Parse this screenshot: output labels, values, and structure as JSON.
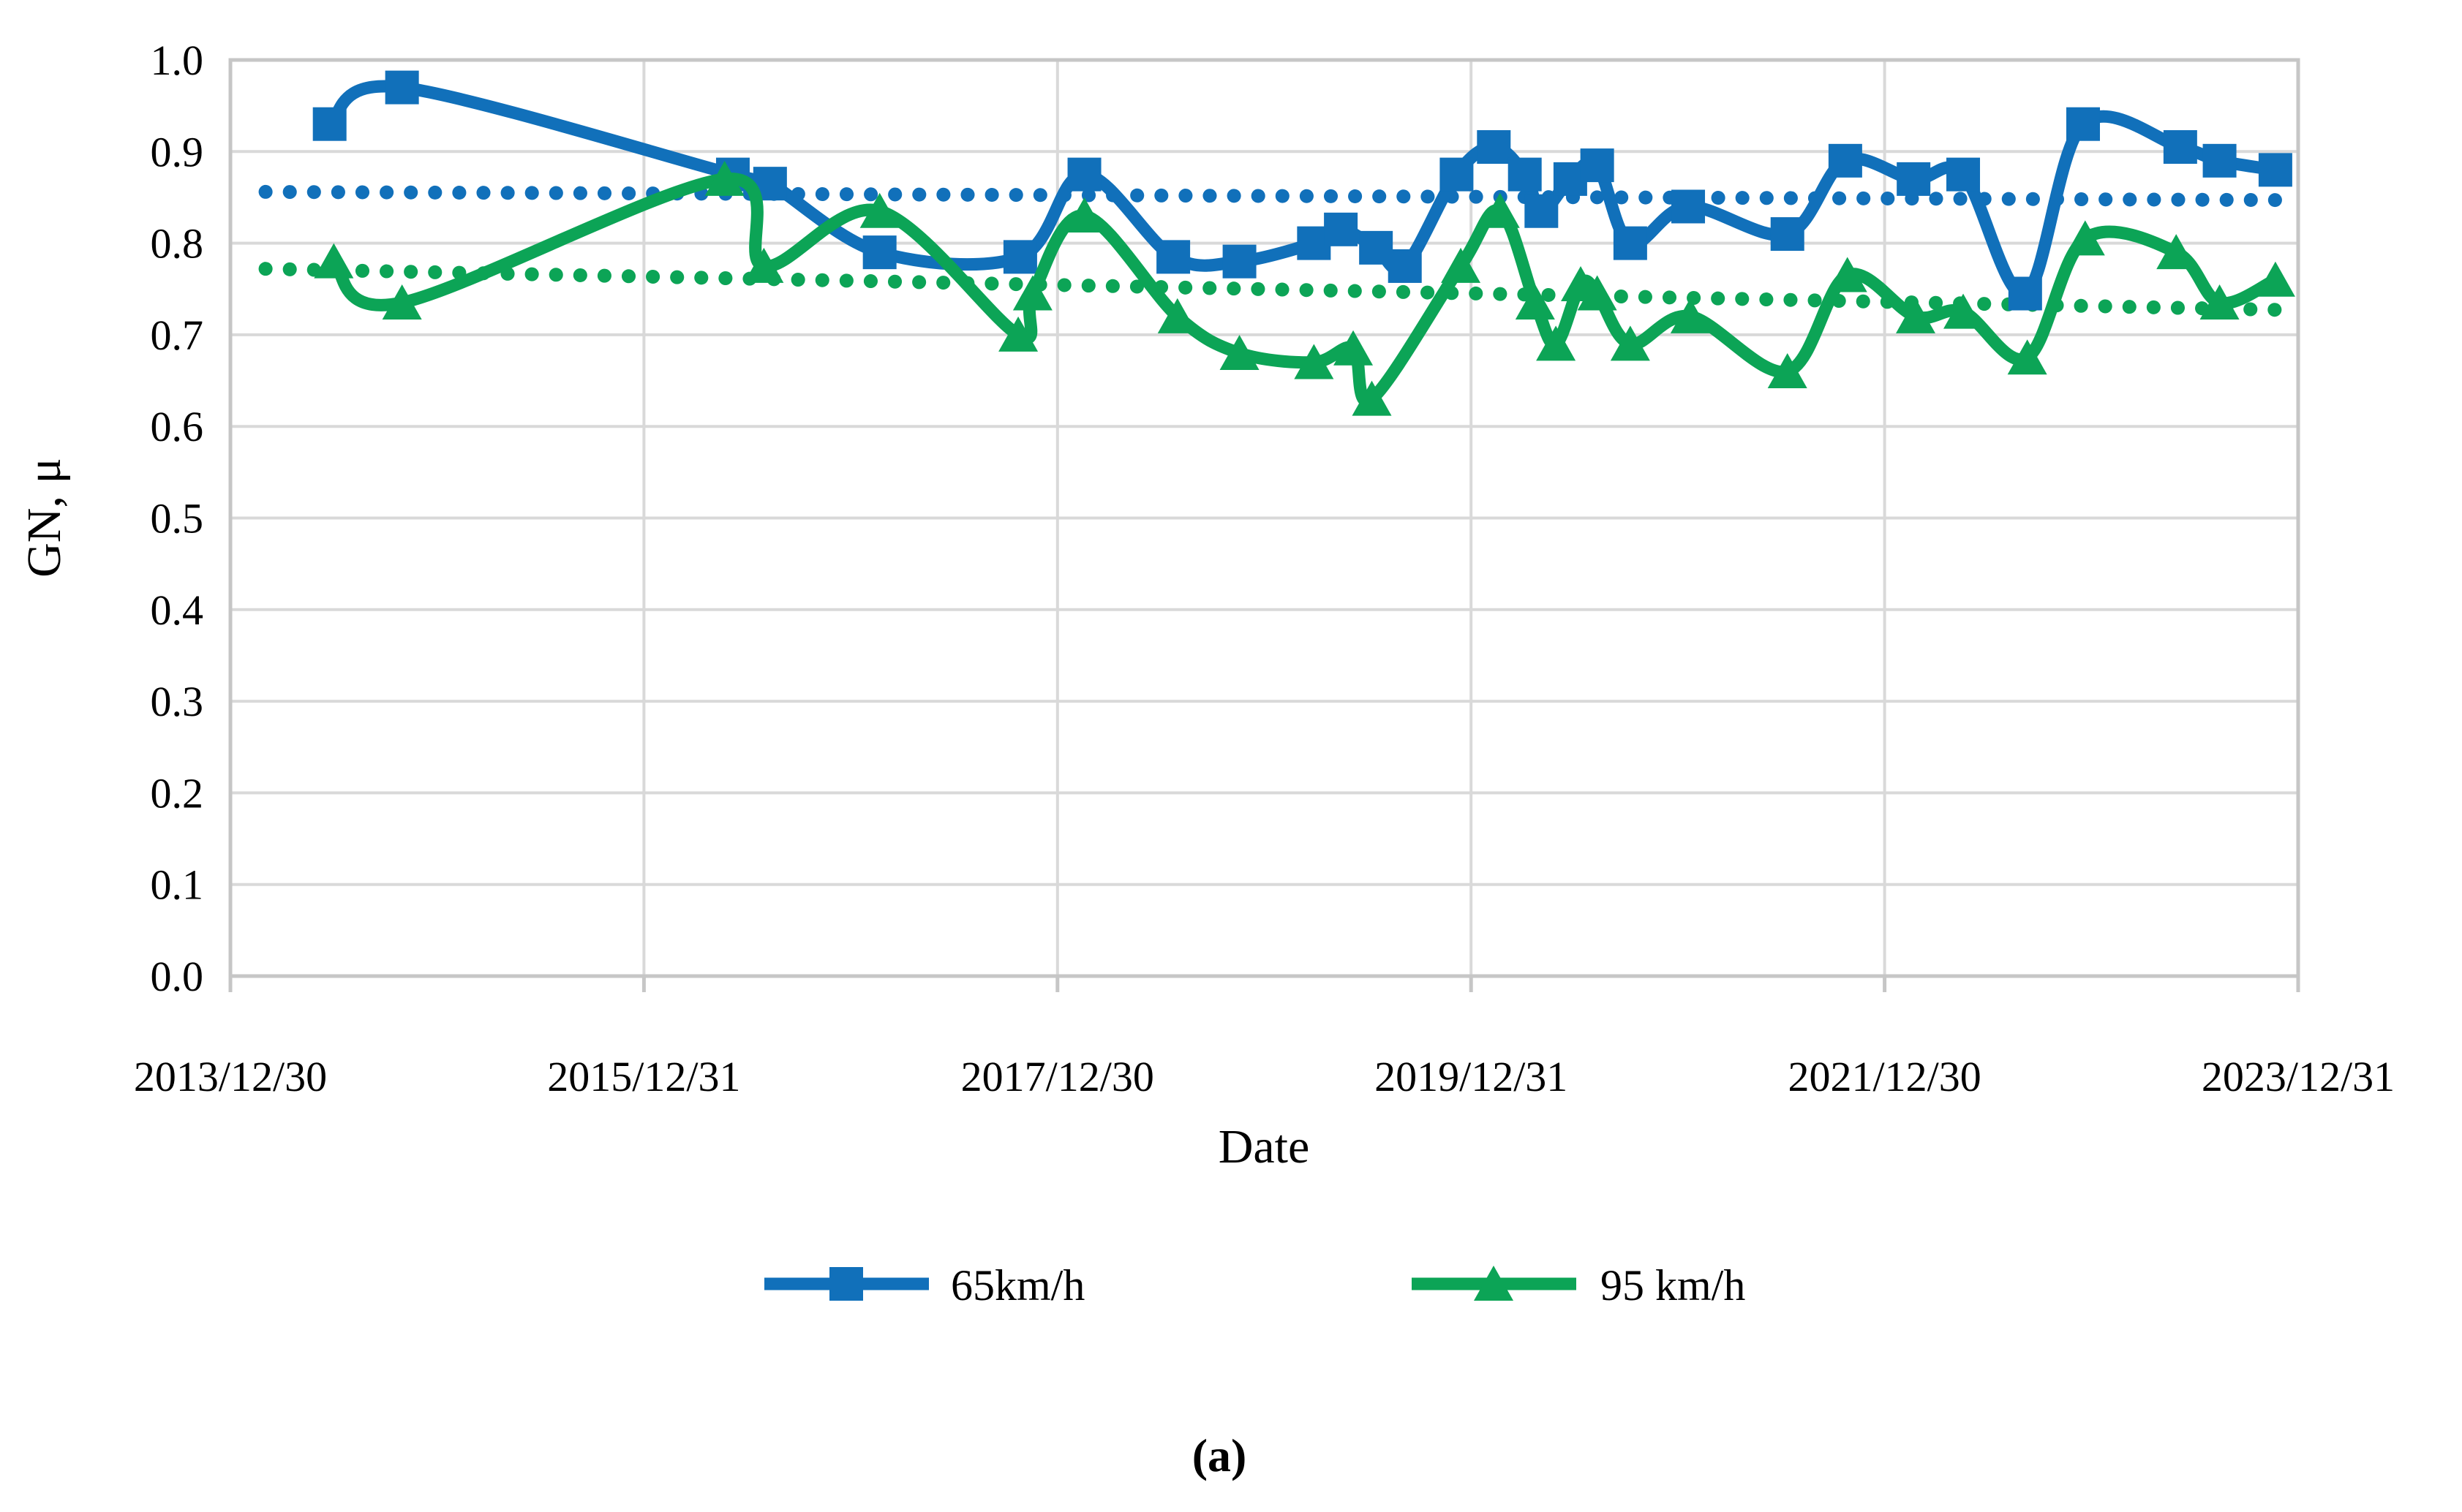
{
  "figure": {
    "caption": "(a)",
    "background": "#FFFFFF",
    "grid_color": "#D9D9D9",
    "border_color": "#C6C6C6",
    "text_color": "#000000"
  },
  "chart_data": {
    "type": "line",
    "title": "",
    "xlabel": "Date",
    "ylabel": "GN, μ",
    "grid": true,
    "legend_position": "bottom",
    "x_axis": {
      "tick_labels": [
        "2013/12/30",
        "2015/12/31",
        "2017/12/30",
        "2019/12/31",
        "2021/12/30",
        "2023/12/31"
      ],
      "tick_positions_years": [
        2014.0,
        2016.0,
        2018.0,
        2020.0,
        2022.0,
        2024.0
      ],
      "range_years": [
        2014.0,
        2024.0
      ]
    },
    "y_axis": {
      "tick_labels": [
        "0.0",
        "0.1",
        "0.2",
        "0.3",
        "0.4",
        "0.5",
        "0.6",
        "0.7",
        "0.8",
        "0.9",
        "1.0"
      ],
      "range": [
        0.0,
        1.0
      ],
      "step": 0.1
    },
    "series": [
      {
        "name": "65km/h",
        "color": "#1170BA",
        "marker": "square",
        "smooth": true,
        "points": [
          [
            2014.48,
            0.93
          ],
          [
            2014.83,
            0.97
          ],
          [
            2016.43,
            0.875
          ],
          [
            2016.61,
            0.865
          ],
          [
            2017.14,
            0.79
          ],
          [
            2017.82,
            0.785
          ],
          [
            2018.13,
            0.875
          ],
          [
            2018.56,
            0.785
          ],
          [
            2018.88,
            0.78
          ],
          [
            2019.24,
            0.8
          ],
          [
            2019.37,
            0.815
          ],
          [
            2019.54,
            0.795
          ],
          [
            2019.68,
            0.775
          ],
          [
            2019.93,
            0.875
          ],
          [
            2020.11,
            0.905
          ],
          [
            2020.26,
            0.875
          ],
          [
            2020.34,
            0.835
          ],
          [
            2020.48,
            0.87
          ],
          [
            2020.61,
            0.885
          ],
          [
            2020.77,
            0.8
          ],
          [
            2021.05,
            0.84
          ],
          [
            2021.53,
            0.81
          ],
          [
            2021.81,
            0.89
          ],
          [
            2022.14,
            0.87
          ],
          [
            2022.38,
            0.875
          ],
          [
            2022.68,
            0.745
          ],
          [
            2022.96,
            0.93
          ],
          [
            2023.43,
            0.905
          ],
          [
            2023.62,
            0.89
          ],
          [
            2023.89,
            0.88
          ]
        ]
      },
      {
        "name": "95 km/h",
        "color": "#0CA456",
        "marker": "triangle",
        "smooth": true,
        "points": [
          [
            2014.5,
            0.78
          ],
          [
            2014.83,
            0.735
          ],
          [
            2016.39,
            0.87
          ],
          [
            2016.58,
            0.775
          ],
          [
            2017.14,
            0.835
          ],
          [
            2017.81,
            0.7
          ],
          [
            2017.88,
            0.745
          ],
          [
            2018.13,
            0.83
          ],
          [
            2018.58,
            0.72
          ],
          [
            2018.88,
            0.68
          ],
          [
            2019.24,
            0.67
          ],
          [
            2019.43,
            0.685
          ],
          [
            2019.52,
            0.63
          ],
          [
            2019.95,
            0.775
          ],
          [
            2020.14,
            0.835
          ],
          [
            2020.31,
            0.735
          ],
          [
            2020.41,
            0.69
          ],
          [
            2020.53,
            0.755
          ],
          [
            2020.61,
            0.745
          ],
          [
            2020.77,
            0.69
          ],
          [
            2021.06,
            0.72
          ],
          [
            2021.53,
            0.66
          ],
          [
            2021.82,
            0.765
          ],
          [
            2022.15,
            0.72
          ],
          [
            2022.38,
            0.725
          ],
          [
            2022.69,
            0.675
          ],
          [
            2022.97,
            0.805
          ],
          [
            2023.41,
            0.79
          ],
          [
            2023.62,
            0.735
          ],
          [
            2023.89,
            0.76
          ]
        ]
      }
    ],
    "trendlines": [
      {
        "series": "65km/h",
        "style": "dotted",
        "color": "#1170BA",
        "start": [
          2014.17,
          0.856
        ],
        "end": [
          2023.95,
          0.847
        ]
      },
      {
        "series": "95 km/h",
        "style": "dotted",
        "color": "#0CA456",
        "start": [
          2014.17,
          0.772
        ],
        "end": [
          2023.95,
          0.727
        ]
      }
    ]
  }
}
